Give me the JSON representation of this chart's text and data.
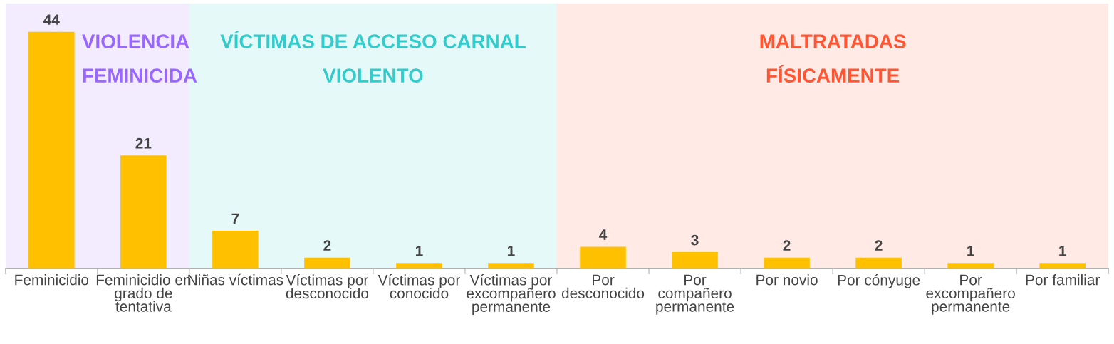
{
  "chart_data": {
    "type": "bar",
    "categories": [
      "Feminicidio",
      "Feminicidio en\ngrado de\ntentativa",
      "Niñas víctimas",
      "Víctimas por\ndesconocido",
      "Víctimas por\nconocido",
      "Víctimas por\nexcompañero\npermanente",
      "Por\ndesconocido",
      "Por\ncompañero\npermanente",
      "Por novio",
      "Por cónyuge",
      "Por\nexcompañero\npermanente",
      "Por familiar"
    ],
    "values": [
      44,
      21,
      7,
      2,
      1,
      1,
      4,
      3,
      2,
      2,
      1,
      1
    ],
    "color": "#ffc000",
    "data_labels": true,
    "grid": false,
    "legend": false,
    "tick_labels": "x",
    "bands": [
      {
        "axis": "x",
        "from": "Feminicidio",
        "to": "Feminicidio en\ngrado de\ntentativa",
        "label": "VIOLENCIA\nFEMINICIDA",
        "color": "#9966ff"
      },
      {
        "axis": "x",
        "from": "Niñas víctimas",
        "to": "Víctimas por\nexcompañero\npermanente",
        "label": "VÍCTIMAS DE ACCESO CARNAL\nVIOLENTO",
        "color": "#33cccc"
      },
      {
        "axis": "x",
        "from": "Por\ndesconocido",
        "to": "Por familiar",
        "label": "MALTRATADAS\nFÍSICAMENTE",
        "color": "#ff5533"
      }
    ]
  }
}
